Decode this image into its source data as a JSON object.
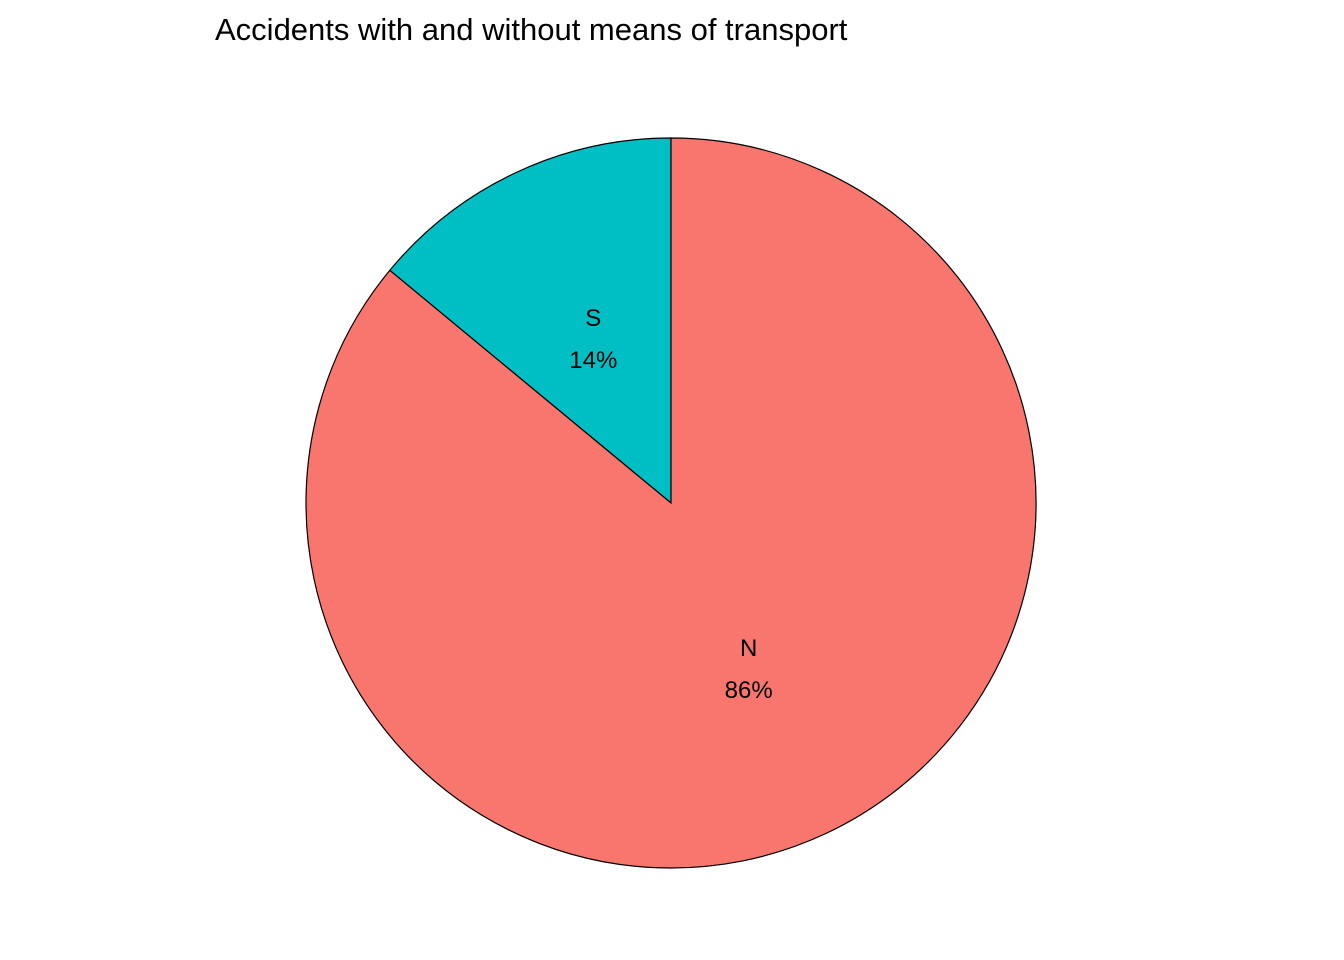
{
  "chart_data": {
    "type": "pie",
    "title": "Accidents with and without means of transport",
    "slices": [
      {
        "label": "N",
        "value": 86,
        "percent_label": "86%",
        "color": "#F8766D"
      },
      {
        "label": "S",
        "value": 14,
        "percent_label": "14%",
        "color": "#00BFC4"
      }
    ],
    "start_angle": "12 o'clock",
    "direction": "clockwise",
    "legend": "none"
  }
}
